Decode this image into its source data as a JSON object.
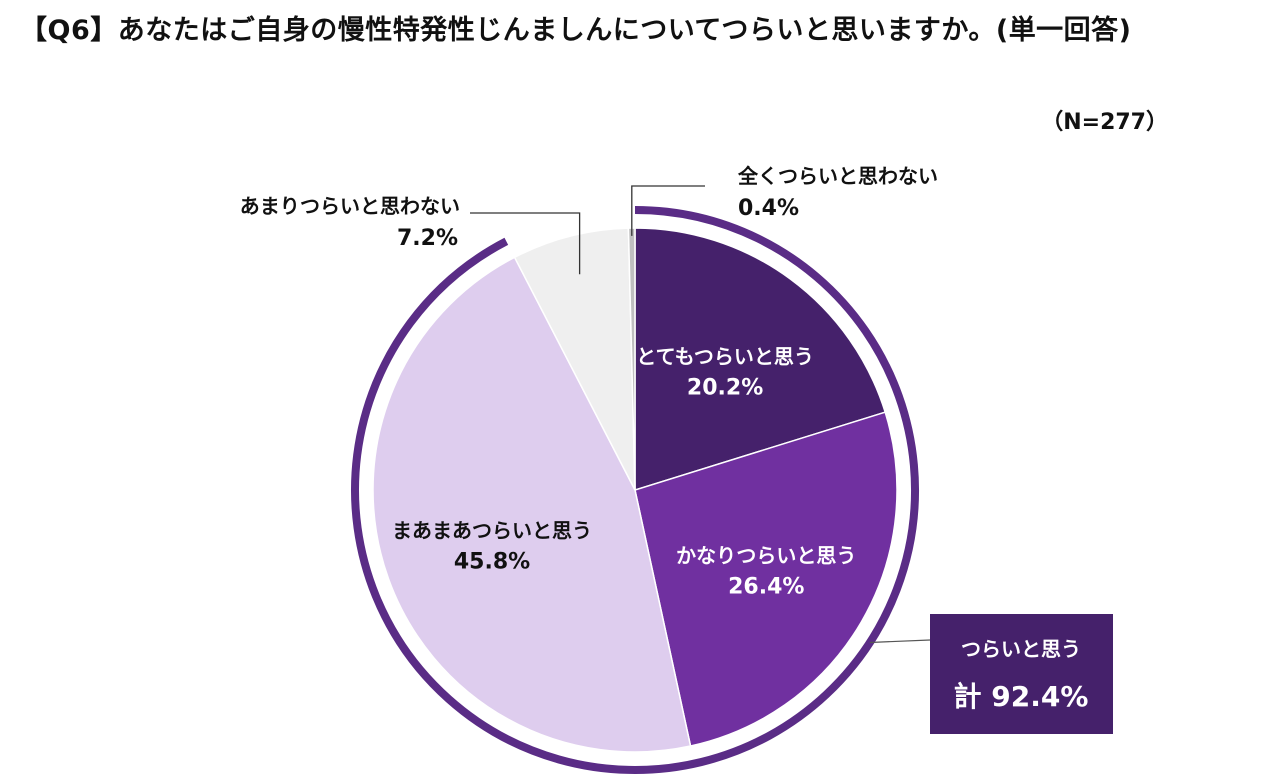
{
  "title": "【Q6】あなたはご自身の慢性特発性じんましんについてつらいと思いますか。(単一回答)",
  "sample_size": "（N=277）",
  "colors": {
    "very": "#45216b",
    "fairly": "#7030a0",
    "somewhat": "#decdee",
    "not_much": "#efefef",
    "not_at_all": "#bfbfbf",
    "ring": "#5a2c86",
    "total_box": "#45216b"
  },
  "chart_data": {
    "type": "pie",
    "title": "【Q6】あなたはご自身の慢性特発性じんましんについてつらいと思いますか。(単一回答)",
    "categories": [
      "とてもつらいと思う",
      "かなりつらいと思う",
      "まあまあつらいと思う",
      "あまりつらいと思わない",
      "全くつらいと思わない"
    ],
    "values": [
      20.2,
      26.4,
      45.8,
      7.2,
      0.4
    ],
    "value_labels": [
      "20.2%",
      "26.4%",
      "45.8%",
      "7.2%",
      "0.4%"
    ],
    "start": "12 o'clock",
    "direction": "clockwise",
    "total": {
      "label": "つらいと思う",
      "value_label": "計 92.4%",
      "value": 92.4
    }
  }
}
